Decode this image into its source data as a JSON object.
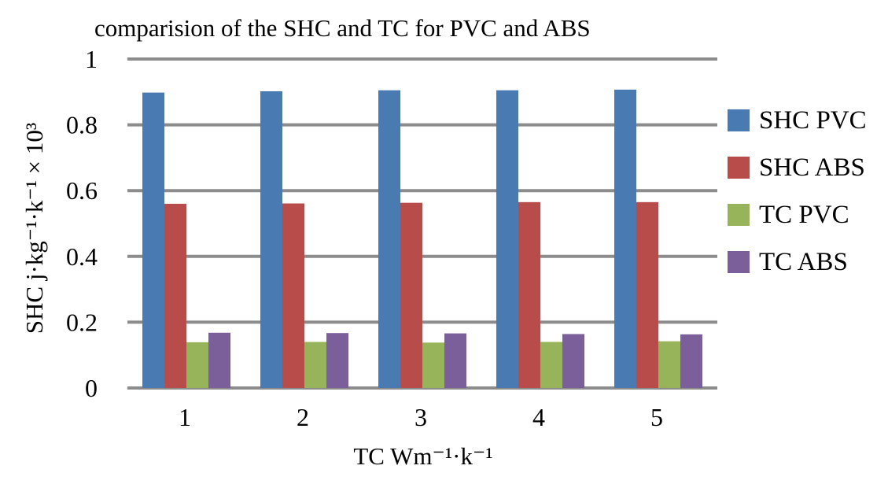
{
  "chart_data": {
    "type": "bar",
    "title": "comparision of the SHC and TC for PVC and ABS",
    "xlabel": "TC Wm⁻¹·k⁻¹",
    "ylabel": "SHC j·kg⁻¹·k⁻¹ × 10³",
    "categories": [
      "1",
      "2",
      "3",
      "4",
      "5"
    ],
    "ylim": [
      0,
      1
    ],
    "yticks": [
      "0",
      "0.2",
      "0.4",
      "0.6",
      "0.8",
      "1"
    ],
    "grid": true,
    "legend": "right",
    "series": [
      {
        "name": "SHC PVC",
        "color": "#4a7ab2",
        "values": [
          0.898,
          0.902,
          0.905,
          0.905,
          0.907
        ]
      },
      {
        "name": "SHC ABS",
        "color": "#b84c4a",
        "values": [
          0.56,
          0.561,
          0.563,
          0.565,
          0.565
        ]
      },
      {
        "name": "TC PVC",
        "color": "#98b45a",
        "values": [
          0.139,
          0.14,
          0.138,
          0.14,
          0.142
        ]
      },
      {
        "name": "TC ABS",
        "color": "#7a5f9a",
        "values": [
          0.168,
          0.167,
          0.166,
          0.164,
          0.163
        ]
      }
    ]
  }
}
